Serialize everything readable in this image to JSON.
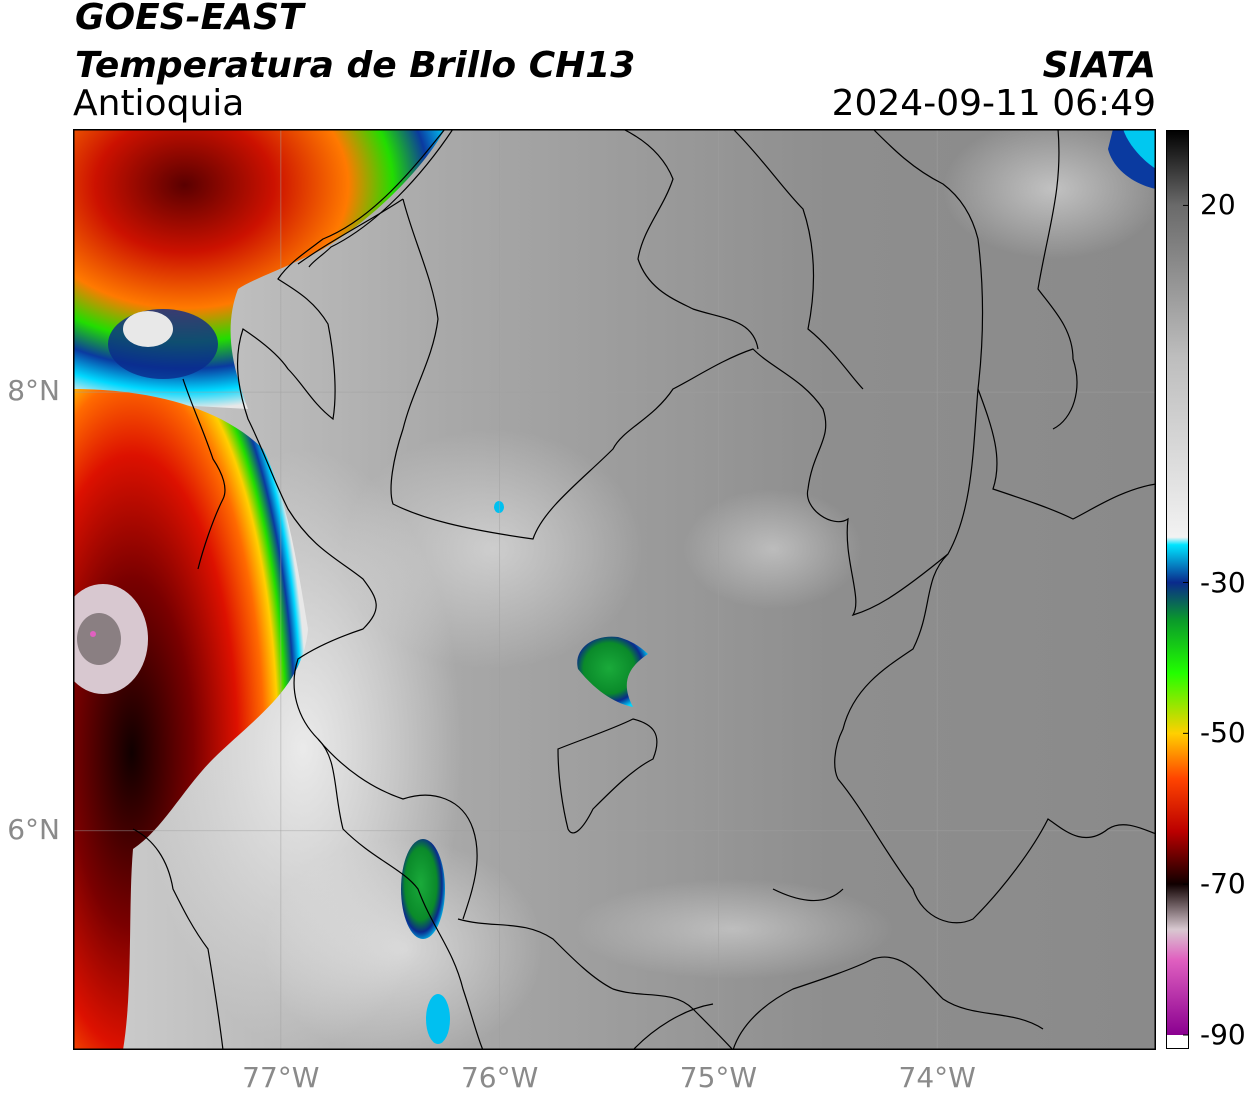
{
  "header": {
    "satellite": "GOES-EAST",
    "product": "Temperatura de Brillo CH13",
    "region": "Antioquia",
    "agency": "SIATA",
    "datetime": "2024-09-11 06:49"
  },
  "axes": {
    "longitude_ticks": [
      {
        "label": "77°W",
        "value": -77
      },
      {
        "label": "76°W",
        "value": -76
      },
      {
        "label": "75°W",
        "value": -75
      },
      {
        "label": "74°W",
        "value": -74
      }
    ],
    "latitude_ticks": [
      {
        "label": "8°N",
        "value": 8
      },
      {
        "label": "6°N",
        "value": 6
      }
    ],
    "lon_range": [
      -77.95,
      -73.0
    ],
    "lat_range": [
      5.0,
      9.2
    ],
    "grid": true
  },
  "colorbar": {
    "range": [
      -90,
      30
    ],
    "ticks": [
      {
        "label": "20",
        "value": 20
      },
      {
        "label": "-30",
        "value": -30
      },
      {
        "label": "-50",
        "value": -50
      },
      {
        "label": "-70",
        "value": -70
      },
      {
        "label": "-90",
        "value": -90
      }
    ],
    "stops": [
      {
        "value": 30,
        "color": "#000000"
      },
      {
        "value": 20,
        "color": "#6a6a6a"
      },
      {
        "value": 0,
        "color": "#bdbdbd"
      },
      {
        "value": -24,
        "color": "#f2f2f2"
      },
      {
        "value": -25,
        "color": "#00e5ff"
      },
      {
        "value": -30,
        "color": "#0a2a8c"
      },
      {
        "value": -35,
        "color": "#0a9a2a"
      },
      {
        "value": -42,
        "color": "#22ff00"
      },
      {
        "value": -50,
        "color": "#ffd000"
      },
      {
        "value": -56,
        "color": "#ff4400"
      },
      {
        "value": -63,
        "color": "#bb0000"
      },
      {
        "value": -70,
        "color": "#100000"
      },
      {
        "value": -76,
        "color": "#d8c8d0"
      },
      {
        "value": -80,
        "color": "#e060c0"
      },
      {
        "value": -90,
        "color": "#8a0090"
      }
    ]
  },
  "colors": {
    "background_gray": "#8e8e8e",
    "frame": "#000000",
    "grid": "#a0a0a0",
    "tick_label": "#8a8a8a"
  }
}
